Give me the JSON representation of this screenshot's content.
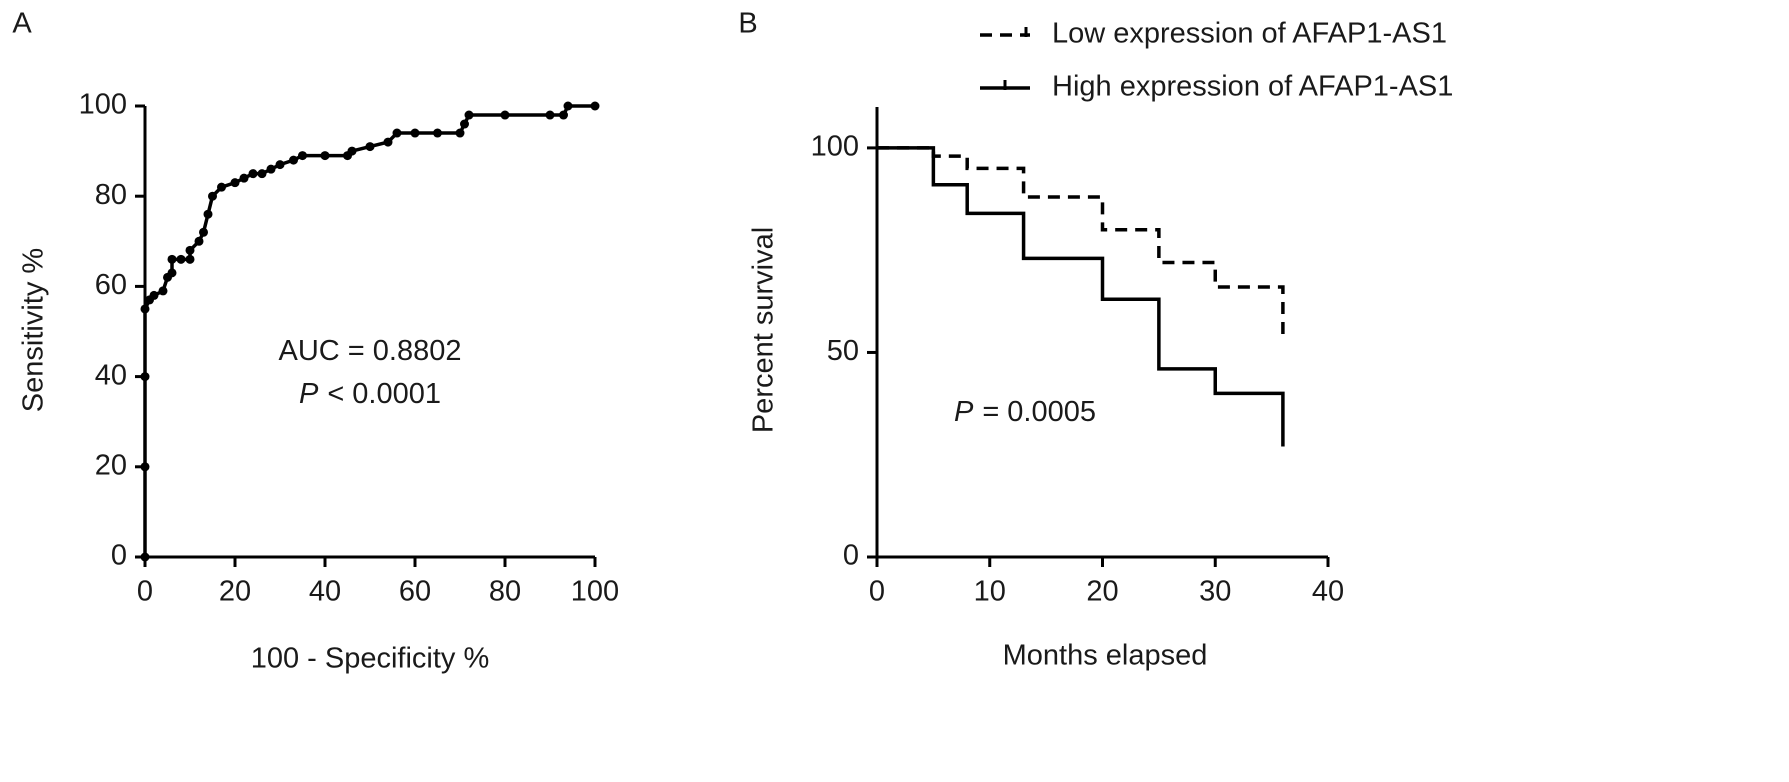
{
  "chart_data": [
    {
      "type": "line",
      "panel_label": "A",
      "x_label": "100 - Specificity %",
      "y_label": "Sensitivity %",
      "annotations": [
        {
          "text": "AUC = 0.8802"
        },
        {
          "symbol": "P",
          "text": "< 0.0001"
        }
      ],
      "xlim": [
        0,
        100
      ],
      "ylim": [
        0,
        100
      ],
      "xticks": [
        0,
        20,
        40,
        60,
        80,
        100
      ],
      "yticks": [
        0,
        20,
        40,
        60,
        80,
        100
      ],
      "series": [
        {
          "color": "#000000",
          "marker": true,
          "line_style": "solid",
          "x": [
            0,
            0,
            0,
            0,
            1,
            2,
            4,
            5,
            6,
            6,
            8,
            10,
            10,
            12,
            13,
            14,
            15,
            17,
            20,
            22,
            24,
            26,
            28,
            30,
            33,
            35,
            40,
            45,
            46,
            50,
            54,
            56,
            60,
            65,
            70,
            71,
            72,
            80,
            90,
            93,
            94,
            100
          ],
          "values": [
            0,
            20,
            40,
            55,
            57,
            58,
            59,
            62,
            63,
            66,
            66,
            66,
            68,
            70,
            72,
            76,
            80,
            82,
            83,
            84,
            85,
            85,
            86,
            87,
            88,
            89,
            89,
            89,
            90,
            91,
            92,
            94,
            94,
            94,
            94,
            96,
            98,
            98,
            98,
            98,
            100,
            100
          ]
        }
      ]
    },
    {
      "type": "line",
      "panel_label": "B",
      "x_label": "Months elapsed",
      "y_label": "Percent survival",
      "annotations": [
        {
          "symbol": "P",
          "text": "= 0.0005"
        }
      ],
      "xlim": [
        0,
        40
      ],
      "ylim": [
        0,
        110
      ],
      "xticks": [
        0,
        10,
        20,
        30,
        40
      ],
      "yticks": [
        0,
        50,
        100
      ],
      "legend": "upper right",
      "series": [
        {
          "name": "Low expression of AFAP1-AS1",
          "color": "#000000",
          "line_style": "dashed",
          "x": [
            0,
            5,
            5,
            8,
            8,
            13,
            13,
            20,
            20,
            25,
            25,
            30,
            30,
            36,
            36
          ],
          "values": [
            100,
            100,
            98,
            98,
            95,
            95,
            88,
            88,
            80,
            80,
            72,
            72,
            66,
            66,
            53
          ]
        },
        {
          "name": "High expression of AFAP1-AS1",
          "color": "#000000",
          "line_style": "solid",
          "x": [
            0,
            5,
            5,
            8,
            8,
            13,
            13,
            20,
            20,
            25,
            25,
            30,
            30,
            36,
            36
          ],
          "values": [
            100,
            100,
            91,
            91,
            84,
            84,
            73,
            73,
            63,
            63,
            46,
            46,
            40,
            40,
            27
          ]
        }
      ]
    }
  ]
}
